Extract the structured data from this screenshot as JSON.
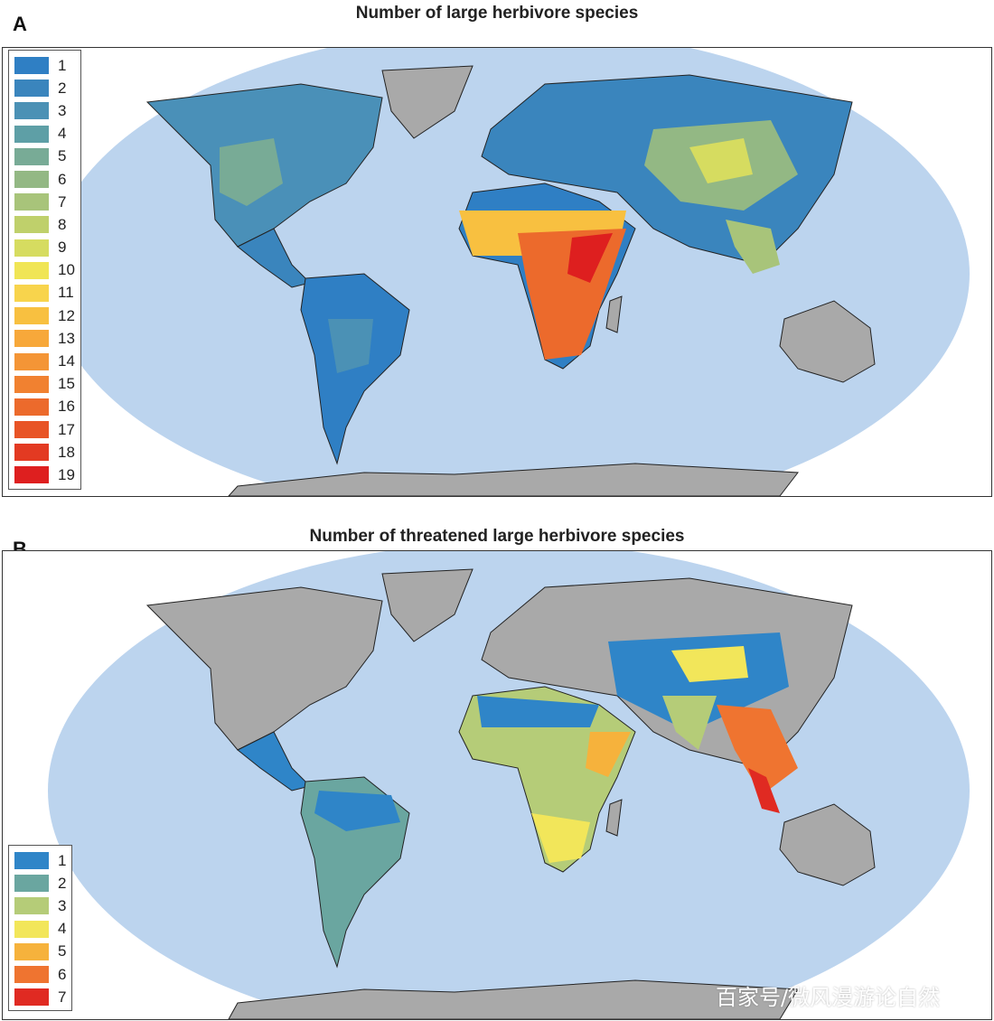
{
  "panel_a": {
    "letter": "A",
    "title": "Number of large herbivore species",
    "legend": [
      {
        "label": "1",
        "color": "#2f7fc4"
      },
      {
        "label": "2",
        "color": "#3a85bd"
      },
      {
        "label": "3",
        "color": "#4b91b5"
      },
      {
        "label": "4",
        "color": "#5e9fa6"
      },
      {
        "label": "5",
        "color": "#78ab96"
      },
      {
        "label": "6",
        "color": "#93b884"
      },
      {
        "label": "7",
        "color": "#a8c47a"
      },
      {
        "label": "8",
        "color": "#bfd06b"
      },
      {
        "label": "9",
        "color": "#d6dc60"
      },
      {
        "label": "10",
        "color": "#f0e555"
      },
      {
        "label": "11",
        "color": "#f8d44c"
      },
      {
        "label": "12",
        "color": "#f8c040"
      },
      {
        "label": "13",
        "color": "#f7a83a"
      },
      {
        "label": "14",
        "color": "#f49536"
      },
      {
        "label": "15",
        "color": "#f18130"
      },
      {
        "label": "16",
        "color": "#ec6a2c"
      },
      {
        "label": "17",
        "color": "#e85426"
      },
      {
        "label": "18",
        "color": "#e33a22"
      },
      {
        "label": "19",
        "color": "#de1f1f"
      }
    ]
  },
  "panel_b": {
    "letter": "B",
    "title": "Number of threatened large herbivore species",
    "legend": [
      {
        "label": "1",
        "color": "#2f85c8"
      },
      {
        "label": "2",
        "color": "#6aa6a0"
      },
      {
        "label": "3",
        "color": "#b5cc78"
      },
      {
        "label": "4",
        "color": "#f2e65a"
      },
      {
        "label": "5",
        "color": "#f6b23c"
      },
      {
        "label": "6",
        "color": "#ef7430"
      },
      {
        "label": "7",
        "color": "#e02a22"
      }
    ]
  },
  "colors": {
    "ocean": "#bcd4ee",
    "land_nodata": "#a9a9a9",
    "border": "#222222"
  },
  "watermark": "百家号/微风漫游论自然"
}
